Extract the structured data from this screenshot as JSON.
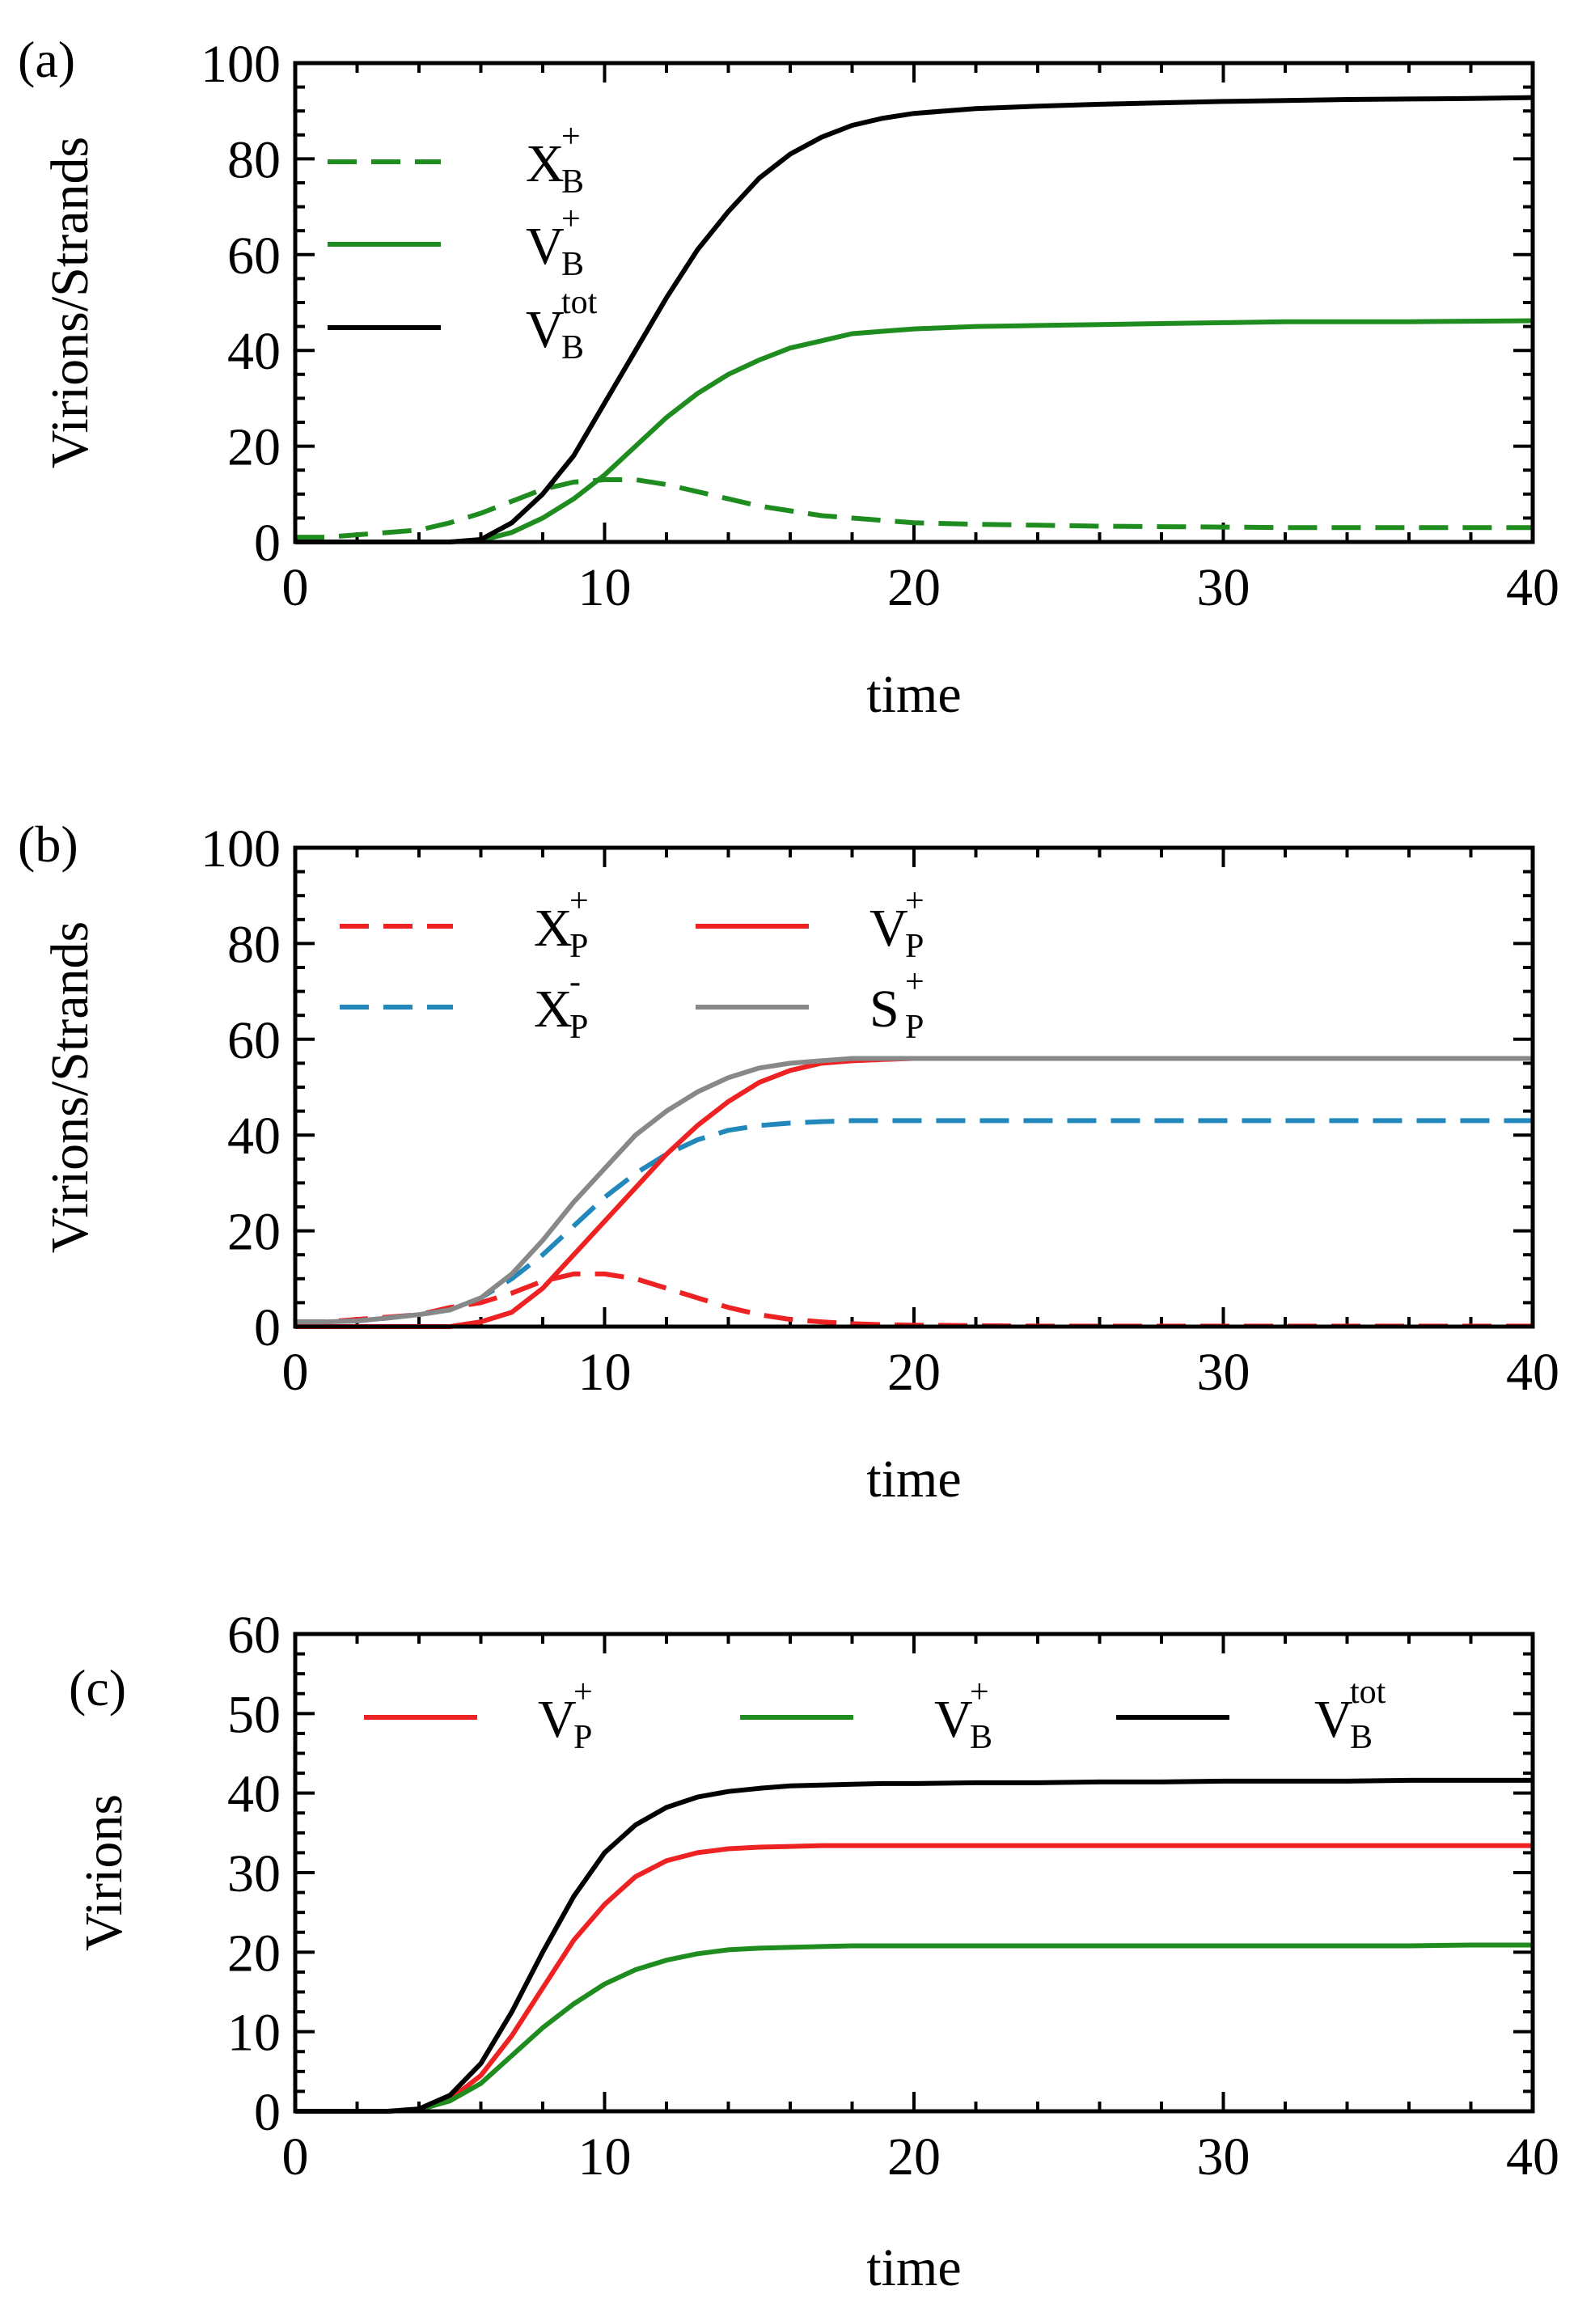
{
  "colors": {
    "green": "#1e8c1e",
    "black": "#000000",
    "red": "#ee2222",
    "blue": "#2288bb",
    "gray": "#888888"
  },
  "chart_data": [
    {
      "id": "a",
      "type": "line",
      "panel_label": "(a)",
      "xlabel": "time",
      "ylabel": "Virions/Strands",
      "xlim": [
        0,
        40
      ],
      "ylim": [
        0,
        100
      ],
      "xticks": [
        0,
        10,
        20,
        30,
        40
      ],
      "yticks": [
        0,
        20,
        40,
        60,
        80,
        100
      ],
      "x": [
        0,
        1,
        2,
        3,
        4,
        5,
        6,
        7,
        8,
        9,
        10,
        11,
        12,
        13,
        14,
        15,
        16,
        17,
        18,
        19,
        20,
        22,
        24,
        26,
        28,
        30,
        32,
        34,
        36,
        38,
        40
      ],
      "series": [
        {
          "key": "xb_plus",
          "main": "X",
          "sub": "B",
          "sup": "+",
          "color": "green",
          "dash": true,
          "values": [
            1,
            1,
            1.5,
            2,
            2.5,
            4,
            6,
            8.5,
            11,
            12.5,
            13,
            13,
            12,
            10.5,
            9,
            7.5,
            6.5,
            5.5,
            5,
            4.5,
            4,
            3.7,
            3.5,
            3.3,
            3.2,
            3.1,
            3,
            3,
            3,
            3,
            3
          ]
        },
        {
          "key": "vb_plus",
          "main": "V",
          "sub": "B",
          "sup": "+",
          "color": "green",
          "dash": false,
          "values": [
            0,
            0,
            0,
            0,
            0,
            0,
            0.3,
            2,
            5,
            9,
            14,
            20,
            26,
            31,
            35,
            38,
            40.5,
            42,
            43.5,
            44,
            44.5,
            45,
            45.2,
            45.4,
            45.6,
            45.8,
            46,
            46,
            46,
            46.1,
            46.2
          ]
        },
        {
          "key": "vb_tot",
          "main": "V",
          "sub": "B",
          "sup": "tot",
          "color": "black",
          "dash": false,
          "values": [
            0,
            0,
            0,
            0,
            0,
            0,
            0.5,
            4,
            10,
            18,
            29,
            40,
            51,
            61,
            69,
            76,
            81,
            84.5,
            87,
            88.5,
            89.5,
            90.5,
            91,
            91.4,
            91.7,
            92,
            92.2,
            92.4,
            92.5,
            92.6,
            92.8
          ]
        }
      ],
      "legend_layout": "column",
      "legend_location": "top-left"
    },
    {
      "id": "b",
      "type": "line",
      "panel_label": "(b)",
      "xlabel": "time",
      "ylabel": "Virions/Strands",
      "xlim": [
        0,
        40
      ],
      "ylim": [
        0,
        100
      ],
      "xticks": [
        0,
        10,
        20,
        30,
        40
      ],
      "yticks": [
        0,
        20,
        40,
        60,
        80,
        100
      ],
      "x": [
        0,
        1,
        2,
        3,
        4,
        5,
        6,
        7,
        8,
        9,
        10,
        11,
        12,
        13,
        14,
        15,
        16,
        17,
        18,
        19,
        20,
        22,
        24,
        26,
        28,
        30,
        32,
        34,
        36,
        38,
        40
      ],
      "series": [
        {
          "key": "xp_plus",
          "main": "X",
          "sub": "P",
          "sup": "+",
          "color": "red",
          "dash": true,
          "values": [
            1,
            1,
            1.5,
            2,
            2.5,
            4,
            5,
            7,
            9.5,
            11,
            11,
            10,
            8,
            6,
            4,
            2.5,
            1.5,
            1,
            0.6,
            0.4,
            0.3,
            0.2,
            0.1,
            0.1,
            0.1,
            0.1,
            0.1,
            0.1,
            0.1,
            0.1,
            0.1
          ]
        },
        {
          "key": "xp_minus",
          "main": "X",
          "sub": "P",
          "sup": "-",
          "color": "blue",
          "dash": true,
          "values": [
            1,
            1,
            1.2,
            1.8,
            2.5,
            3.5,
            6,
            10,
            15,
            21,
            27,
            32,
            36,
            39,
            41,
            42,
            42.5,
            42.8,
            43,
            43,
            43,
            43,
            43,
            43,
            43,
            43,
            43,
            43,
            43,
            43,
            43
          ]
        },
        {
          "key": "vp_plus",
          "main": "V",
          "sub": "P",
          "sup": "+",
          "color": "red",
          "dash": false,
          "values": [
            0,
            0,
            0,
            0,
            0,
            0,
            1,
            3,
            8,
            15,
            22,
            29,
            36,
            42,
            47,
            51,
            53.5,
            55,
            55.5,
            55.8,
            56,
            56,
            56,
            56,
            56,
            56,
            56,
            56,
            56,
            56,
            56
          ]
        },
        {
          "key": "sp_plus",
          "main": "S",
          "sub": "P",
          "sup": "+",
          "color": "gray",
          "dash": false,
          "values": [
            1,
            1,
            1.2,
            1.8,
            2.5,
            3.5,
            6,
            11,
            18,
            26,
            33,
            40,
            45,
            49,
            52,
            54,
            55,
            55.5,
            56,
            56,
            56,
            56,
            56,
            56,
            56,
            56,
            56,
            56,
            56,
            56,
            56
          ]
        }
      ],
      "legend_layout": "two-column",
      "legend_location": "top-left"
    },
    {
      "id": "c",
      "type": "line",
      "panel_label": "(c)",
      "xlabel": "time",
      "ylabel": "Virions",
      "xlim": [
        0,
        40
      ],
      "ylim": [
        0,
        60
      ],
      "xticks": [
        0,
        10,
        20,
        30,
        40
      ],
      "yticks": [
        0,
        10,
        20,
        30,
        40,
        50,
        60
      ],
      "x": [
        0,
        1,
        2,
        3,
        4,
        5,
        6,
        7,
        8,
        9,
        10,
        11,
        12,
        13,
        14,
        15,
        16,
        17,
        18,
        19,
        20,
        22,
        24,
        26,
        28,
        30,
        32,
        34,
        36,
        38,
        40
      ],
      "series": [
        {
          "key": "vp_plus_c",
          "main": "V",
          "sub": "P",
          "sup": "+",
          "color": "red",
          "dash": false,
          "values": [
            0,
            0,
            0,
            0,
            0.2,
            1.5,
            4.5,
            9.5,
            15.5,
            21.5,
            26,
            29.5,
            31.5,
            32.5,
            33,
            33.2,
            33.3,
            33.4,
            33.4,
            33.4,
            33.4,
            33.4,
            33.4,
            33.4,
            33.4,
            33.4,
            33.4,
            33.4,
            33.4,
            33.4,
            33.4
          ]
        },
        {
          "key": "vb_plus_c",
          "main": "V",
          "sub": "B",
          "sup": "+",
          "color": "green",
          "dash": false,
          "values": [
            0,
            0,
            0,
            0,
            0.2,
            1.3,
            3.5,
            7,
            10.5,
            13.5,
            16,
            17.8,
            19,
            19.8,
            20.3,
            20.5,
            20.6,
            20.7,
            20.8,
            20.8,
            20.8,
            20.8,
            20.8,
            20.8,
            20.8,
            20.8,
            20.8,
            20.8,
            20.8,
            20.9,
            20.9
          ]
        },
        {
          "key": "vb_tot_c",
          "main": "V",
          "sub": "B",
          "sup": "tot",
          "color": "black",
          "dash": false,
          "values": [
            0,
            0,
            0,
            0,
            0.3,
            2,
            6,
            12.5,
            20,
            27,
            32.5,
            36,
            38.2,
            39.5,
            40.2,
            40.6,
            40.9,
            41,
            41.1,
            41.2,
            41.2,
            41.3,
            41.3,
            41.4,
            41.4,
            41.5,
            41.5,
            41.5,
            41.6,
            41.6,
            41.6
          ]
        }
      ],
      "legend_layout": "row",
      "legend_location": "top"
    }
  ]
}
